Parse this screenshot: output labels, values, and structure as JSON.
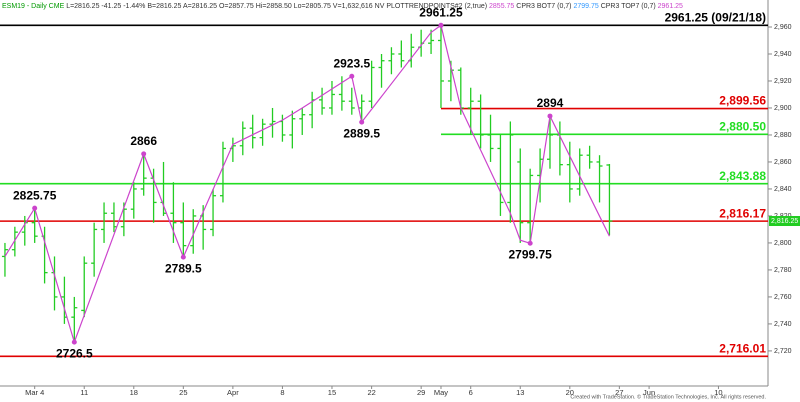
{
  "chart_data": {
    "type": "ohlc",
    "header": [
      {
        "text": "ESM19 - Daily CME",
        "color": "#009900"
      },
      {
        "text": "L=2816.25 -41.25 -1.44% B=2816.25 A=2816.25 O=2857.75 Hi=2858.50 Lo=2805.75 V=1,632,616 NV PLOTTRENDPOINTS#2 (2,true)",
        "color": "#333333"
      },
      {
        "text": "2855.75",
        "color": "#cc44cc"
      },
      {
        "text": "CPR3 BOT7 (0,7)",
        "color": "#333333"
      },
      {
        "text": "2799.75",
        "color": "#3399ff"
      },
      {
        "text": "CPR3 TOP7 (0,7)",
        "color": "#333333"
      },
      {
        "text": "2961.25",
        "color": "#cc44cc"
      }
    ],
    "footer": "Created with TradeStation. © TradeStation Technologies, Inc. All rights reserved.",
    "color": "#22cc22",
    "x": [
      0,
      1,
      2,
      3,
      4,
      5,
      6,
      7,
      8,
      9,
      10,
      11,
      12,
      13,
      14,
      15,
      16,
      17,
      18,
      19,
      20,
      21,
      22,
      23,
      24,
      25,
      26,
      27,
      28,
      29,
      30,
      31,
      32,
      33,
      34,
      35,
      36,
      37,
      38,
      39,
      40,
      41,
      42,
      43,
      44,
      45,
      46,
      47,
      48,
      49,
      50,
      51,
      52,
      53,
      54,
      55,
      56,
      57,
      58,
      59,
      60,
      61
    ],
    "open": [
      2790,
      2795,
      2808,
      2815,
      2805,
      2778,
      2760,
      2745,
      2750,
      2785,
      2810,
      2822,
      2812,
      2825,
      2840,
      2848,
      2830,
      2822,
      2815,
      2798,
      2820,
      2810,
      2835,
      2870,
      2872,
      2885,
      2878,
      2888,
      2890,
      2880,
      2892,
      2895,
      2906,
      2900,
      2910,
      2905,
      2900,
      2905,
      2930,
      2935,
      2940,
      2935,
      2945,
      2948,
      2950,
      2920,
      2928,
      2900,
      2905,
      2880,
      2870,
      2830,
      2860,
      2815,
      2850,
      2862,
      2880,
      2858,
      2840,
      2865,
      2860,
      2857.75
    ],
    "high": [
      2800,
      2812,
      2820,
      2825.75,
      2812,
      2790,
      2775,
      2760,
      2790,
      2815,
      2830,
      2830,
      2830,
      2845,
      2866,
      2855,
      2860,
      2845,
      2830,
      2825,
      2828,
      2840,
      2875,
      2878,
      2890,
      2895,
      2892,
      2900,
      2895,
      2898,
      2900,
      2912,
      2915,
      2920,
      2923.5,
      2915,
      2910,
      2935,
      2940,
      2945,
      2950,
      2955,
      2958,
      2958,
      2961.25,
      2935,
      2930,
      2915,
      2910,
      2895,
      2880,
      2890,
      2870,
      2855,
      2870,
      2894,
      2890,
      2875,
      2870,
      2872,
      2865,
      2858.5
    ],
    "low": [
      2775,
      2790,
      2798,
      2800,
      2770,
      2750,
      2740,
      2726.5,
      2745,
      2775,
      2800,
      2808,
      2805,
      2818,
      2835,
      2815,
      2820,
      2800,
      2789.5,
      2792,
      2795,
      2805,
      2830,
      2860,
      2865,
      2870,
      2872,
      2878,
      2875,
      2870,
      2880,
      2885,
      2895,
      2895,
      2898,
      2895,
      2889.5,
      2900,
      2915,
      2925,
      2930,
      2930,
      2938,
      2940,
      2900,
      2905,
      2895,
      2880,
      2870,
      2860,
      2820,
      2815,
      2800,
      2799.75,
      2830,
      2855,
      2850,
      2830,
      2835,
      2855,
      2830,
      2805.75
    ],
    "close": [
      2795,
      2808,
      2815,
      2805,
      2778,
      2760,
      2745,
      2752,
      2785,
      2810,
      2822,
      2812,
      2825,
      2840,
      2848,
      2830,
      2822,
      2815,
      2798,
      2820,
      2810,
      2835,
      2870,
      2872,
      2885,
      2878,
      2888,
      2890,
      2880,
      2892,
      2895,
      2906,
      2900,
      2910,
      2905,
      2900,
      2905,
      2930,
      2935,
      2940,
      2935,
      2945,
      2948,
      2950,
      2920,
      2928,
      2900,
      2905,
      2880,
      2870,
      2830,
      2880,
      2815,
      2850,
      2862,
      2880,
      2858,
      2840,
      2865,
      2860,
      2857,
      2816.25
    ],
    "trend_line": {
      "color": "#cc44cc",
      "x": [
        0,
        3,
        7,
        14,
        18,
        23,
        28,
        30,
        35,
        36,
        43,
        44,
        46,
        51,
        52,
        53,
        55,
        61
      ],
      "values": [
        2790,
        2825.75,
        2726.5,
        2866,
        2789.5,
        2873,
        2891,
        2900,
        2923.5,
        2889.5,
        2956,
        2961.25,
        2900,
        2822,
        2802,
        2799.75,
        2894,
        2805
      ]
    },
    "pivots": {
      "x": [
        3,
        7,
        14,
        18,
        35,
        36,
        44,
        53,
        55
      ],
      "values": [
        2825.75,
        2726.5,
        2866,
        2789.5,
        2923.5,
        2889.5,
        2961.25,
        2799.75,
        2894
      ],
      "sides": [
        "above",
        "below",
        "above",
        "below",
        "above",
        "below",
        "above",
        "below",
        "above"
      ]
    },
    "levels": [
      {
        "value": 2961.25,
        "label": "2961.25 (09/21/18)",
        "color": "#000000"
      },
      {
        "value": 2899.56,
        "label": "2,899.56",
        "color": "#e00000",
        "from": 44
      },
      {
        "value": 2880.5,
        "label": "2,880.50",
        "color": "#22dd22",
        "from": 44
      },
      {
        "value": 2843.88,
        "label": "2,843.88",
        "color": "#22dd22"
      },
      {
        "value": 2816.17,
        "label": "2,816.17",
        "color": "#e00000"
      },
      {
        "value": 2716.01,
        "label": "2,716.01",
        "color": "#e00000"
      }
    ],
    "last_price": {
      "value": 2816.25,
      "label": "2,816.25"
    },
    "xlim": [
      -0.5,
      77
    ],
    "ylim": [
      2694,
      2980
    ],
    "xticks": [
      {
        "value": 3,
        "label": "Mar 4"
      },
      {
        "value": 8,
        "label": "11"
      },
      {
        "value": 13,
        "label": "18"
      },
      {
        "value": 18,
        "label": "25"
      },
      {
        "value": 23,
        "label": "Apr"
      },
      {
        "value": 28,
        "label": "8"
      },
      {
        "value": 33,
        "label": "15"
      },
      {
        "value": 37,
        "label": "22"
      },
      {
        "value": 42,
        "label": "29"
      },
      {
        "value": 44,
        "label": "May"
      },
      {
        "value": 47,
        "label": "6"
      },
      {
        "value": 52,
        "label": "13"
      },
      {
        "value": 57,
        "label": "20"
      },
      {
        "value": 62,
        "label": "27"
      },
      {
        "value": 65,
        "label": "Jun"
      },
      {
        "value": 72,
        "label": "10"
      }
    ],
    "yticks": [
      {
        "value": 2720,
        "label": "2,720"
      },
      {
        "value": 2740,
        "label": "2,740"
      },
      {
        "value": 2760,
        "label": "2,760"
      },
      {
        "value": 2780,
        "label": "2,780"
      },
      {
        "value": 2800,
        "label": "2,800"
      },
      {
        "value": 2820,
        "label": "2,820"
      },
      {
        "value": 2840,
        "label": "2,840"
      },
      {
        "value": 2860,
        "label": "2,860"
      },
      {
        "value": 2880,
        "label": "2,880"
      },
      {
        "value": 2900,
        "label": "2,900"
      },
      {
        "value": 2920,
        "label": "2,920"
      },
      {
        "value": 2940,
        "label": "2,940"
      },
      {
        "value": 2960,
        "label": "2,960"
      }
    ]
  }
}
